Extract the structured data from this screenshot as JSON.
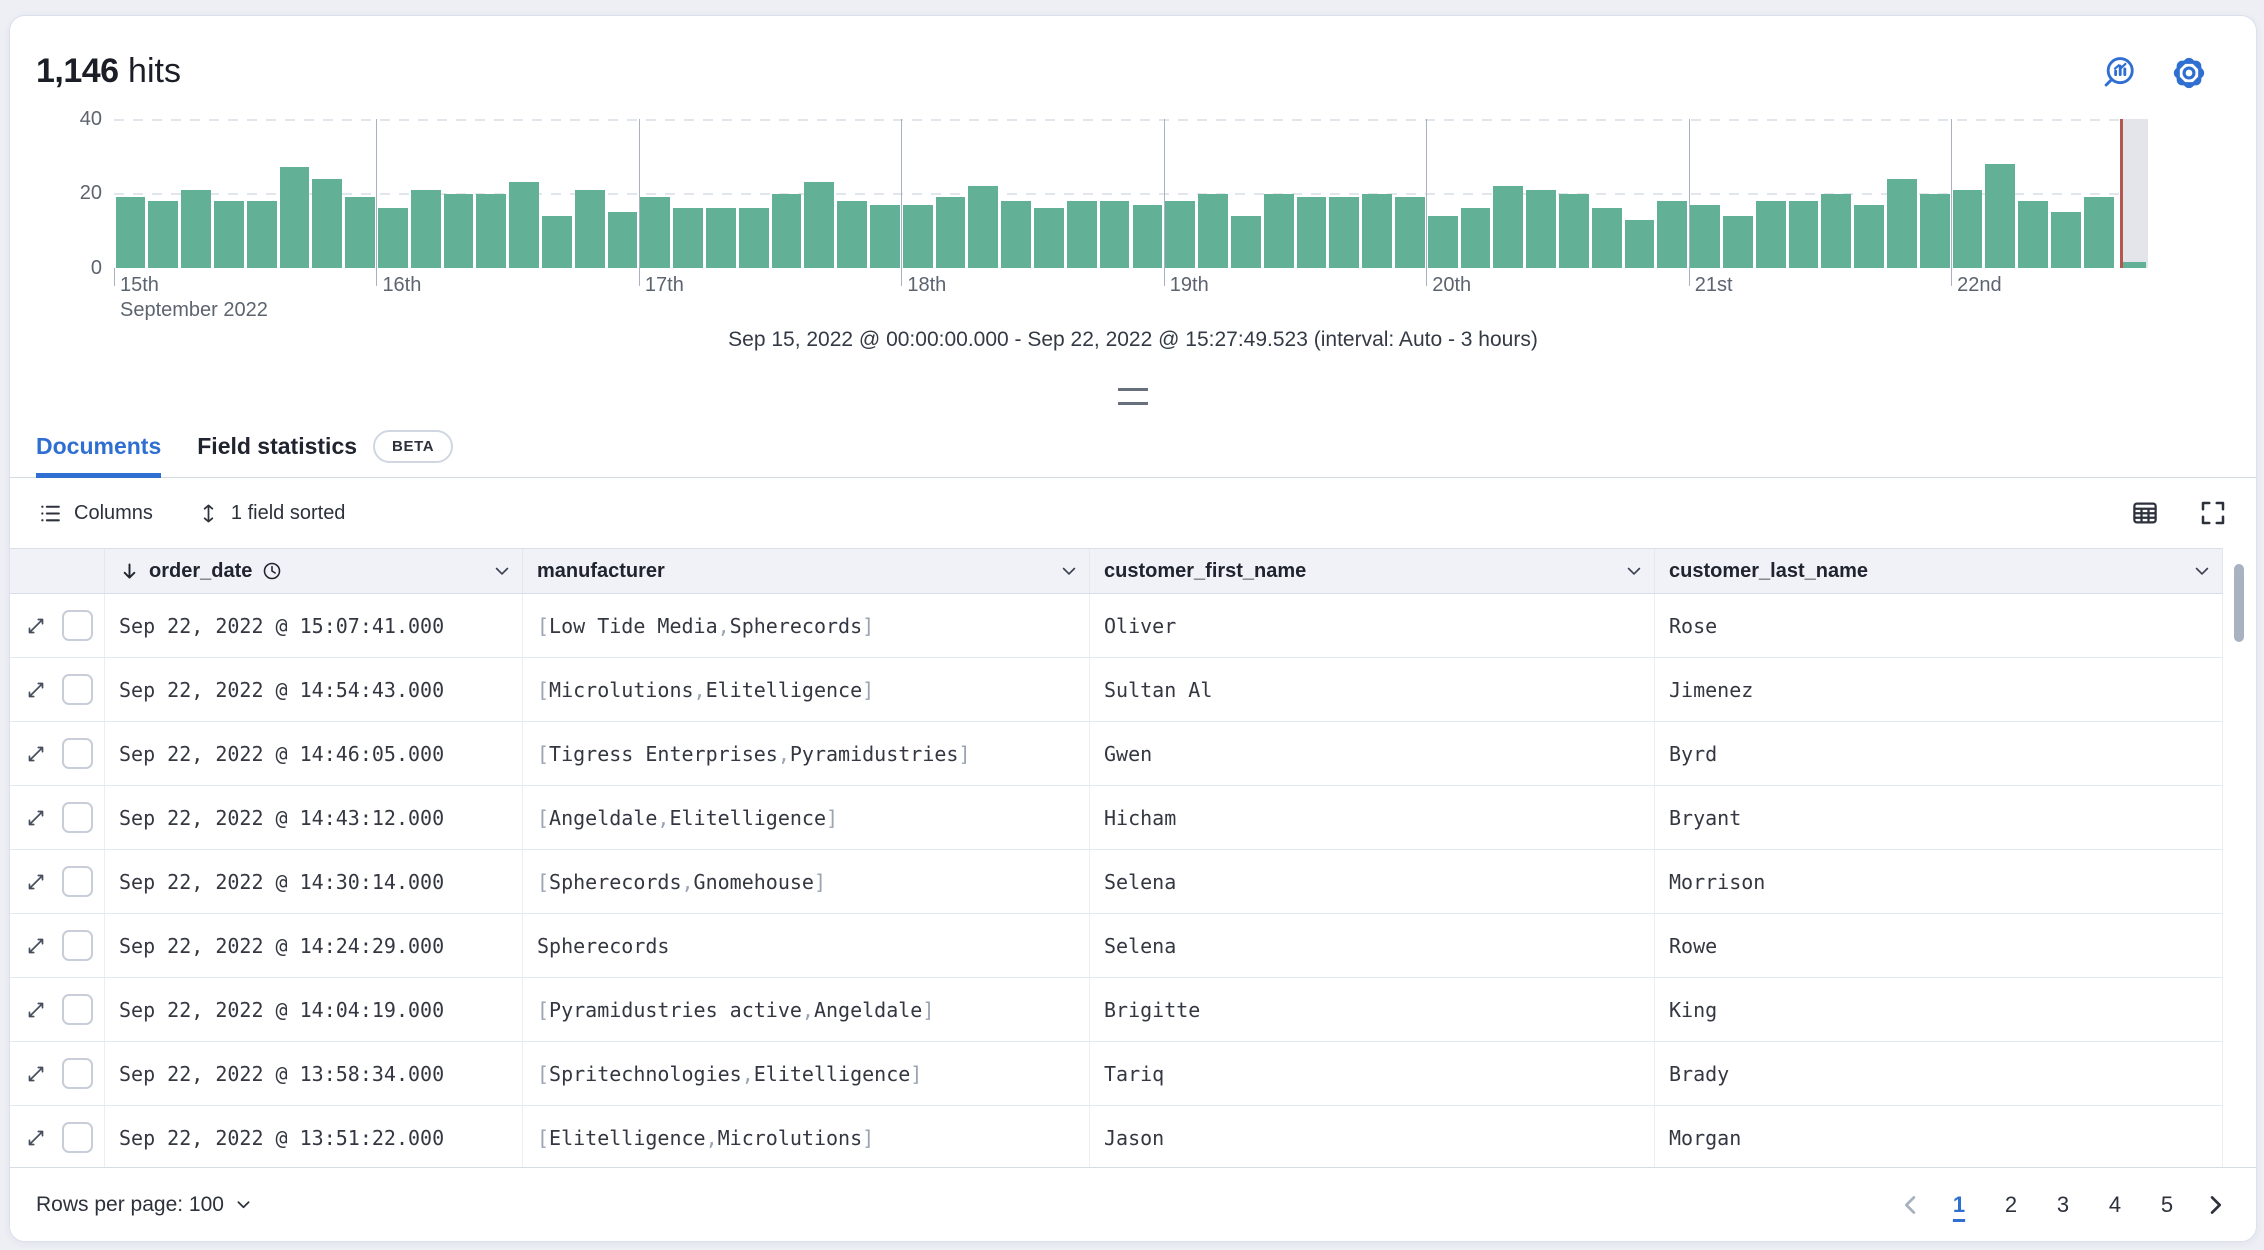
{
  "header": {
    "hits_count": "1,146",
    "hits_label": "hits"
  },
  "chart_data": {
    "type": "bar",
    "title": "Histogram of documents over time",
    "ylabel": "",
    "xlabel": "",
    "ylim": [
      0,
      40
    ],
    "y_ticks": [
      "40",
      "20",
      "0"
    ],
    "day_labels": [
      "15th",
      "16th",
      "17th",
      "18th",
      "19th",
      "20th",
      "21st",
      "22nd"
    ],
    "x_sub_label": "September 2022",
    "bars_per_day": 8,
    "interval_hours": 3,
    "values": [
      19,
      18,
      21,
      18,
      18,
      27,
      24,
      19,
      16,
      21,
      20,
      20,
      23,
      14,
      21,
      15,
      19,
      16,
      16,
      16,
      20,
      23,
      18,
      17,
      17,
      19,
      22,
      18,
      16,
      18,
      18,
      17,
      18,
      20,
      14,
      20,
      19,
      19,
      20,
      19,
      14,
      16,
      22,
      21,
      20,
      16,
      13,
      18,
      17,
      14,
      18,
      18,
      20,
      17,
      24,
      20,
      21,
      28,
      18,
      15,
      19
    ],
    "partial_bucket_value": 1,
    "bar_color": "#62b197",
    "current_time_marker_color": "#b4584e",
    "incomplete_bucket_band_color": "#e4e5ea",
    "caption": "Sep 15, 2022 @ 00:00:00.000 - Sep 22, 2022 @ 15:27:49.523 (interval: Auto - 3 hours)"
  },
  "tabs": {
    "documents": "Documents",
    "field_statistics": "Field statistics",
    "beta_badge": "BETA"
  },
  "toolbar": {
    "columns_label": "Columns",
    "sorted_label": "1 field sorted"
  },
  "grid": {
    "columns": [
      "order_date",
      "manufacturer",
      "customer_first_name",
      "customer_last_name"
    ],
    "rows": [
      {
        "order_date": "Sep 22, 2022 @ 15:07:41.000",
        "manufacturer": [
          "Low Tide Media",
          "Spherecords"
        ],
        "customer_first_name": "Oliver",
        "customer_last_name": "Rose"
      },
      {
        "order_date": "Sep 22, 2022 @ 14:54:43.000",
        "manufacturer": [
          "Microlutions",
          "Elitelligence"
        ],
        "customer_first_name": "Sultan Al",
        "customer_last_name": "Jimenez"
      },
      {
        "order_date": "Sep 22, 2022 @ 14:46:05.000",
        "manufacturer": [
          "Tigress Enterprises",
          "Pyramidustries"
        ],
        "customer_first_name": "Gwen",
        "customer_last_name": "Byrd"
      },
      {
        "order_date": "Sep 22, 2022 @ 14:43:12.000",
        "manufacturer": [
          "Angeldale",
          "Elitelligence"
        ],
        "customer_first_name": "Hicham",
        "customer_last_name": "Bryant"
      },
      {
        "order_date": "Sep 22, 2022 @ 14:30:14.000",
        "manufacturer": [
          "Spherecords",
          "Gnomehouse"
        ],
        "customer_first_name": "Selena",
        "customer_last_name": "Morrison"
      },
      {
        "order_date": "Sep 22, 2022 @ 14:24:29.000",
        "manufacturer": "Spherecords",
        "customer_first_name": "Selena",
        "customer_last_name": "Rowe"
      },
      {
        "order_date": "Sep 22, 2022 @ 14:04:19.000",
        "manufacturer": [
          "Pyramidustries active",
          "Angeldale"
        ],
        "customer_first_name": "Brigitte",
        "customer_last_name": "King"
      },
      {
        "order_date": "Sep 22, 2022 @ 13:58:34.000",
        "manufacturer": [
          "Spritechnologies",
          "Elitelligence"
        ],
        "customer_first_name": "Tariq",
        "customer_last_name": "Brady"
      },
      {
        "order_date": "Sep 22, 2022 @ 13:51:22.000",
        "manufacturer": [
          "Elitelligence",
          "Microlutions"
        ],
        "customer_first_name": "Jason",
        "customer_last_name": "Morgan"
      }
    ]
  },
  "footer": {
    "rows_per_page_label": "Rows per page: 100",
    "pages": [
      "1",
      "2",
      "3",
      "4",
      "5"
    ],
    "active_page": "1"
  }
}
